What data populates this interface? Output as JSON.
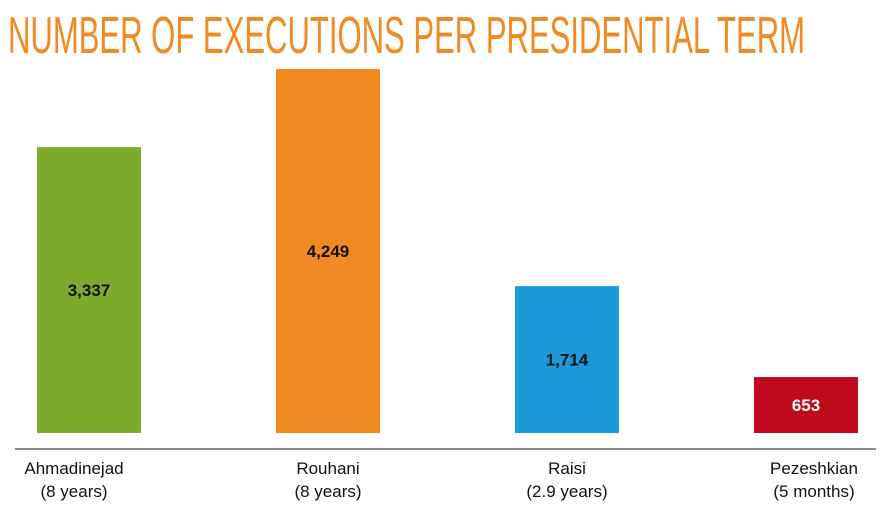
{
  "chart_data": {
    "type": "bar",
    "title": "NUMBER OF EXECUTIONS PER PRESIDENTIAL TERM",
    "categories": [
      [
        "Ahmadinejad",
        "(8 years)"
      ],
      [
        "Rouhani",
        "(8 years)"
      ],
      [
        "Raisi",
        "(2.9 years)"
      ],
      [
        "Pezeshkian",
        "(5 months)"
      ]
    ],
    "values": [
      3337,
      4249,
      1714,
      653
    ],
    "value_labels": [
      "3,337",
      "4,249",
      "1,714",
      "653"
    ],
    "bar_colors": [
      "#7eab2e",
      "#f18a22",
      "#1b99d8",
      "#bf0a1c"
    ],
    "label_colors": [
      "#111111",
      "#111111",
      "#111111",
      "#ffffff"
    ],
    "title_color": "#f18a22",
    "xlabel": "",
    "ylabel": "",
    "ylim": [
      0,
      4249
    ],
    "grid": false,
    "legend": "none"
  }
}
